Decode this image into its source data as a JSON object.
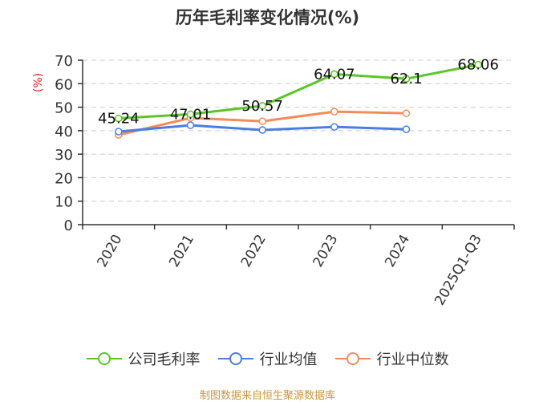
{
  "title": "历年毛利率变化情况(%)",
  "footer": "制图数据来自恒生聚源数据库",
  "colors": {
    "company": "#5bc52a",
    "industry_avg": "#4a7ee0",
    "industry_median": "#f48c5a",
    "ylabel": "#e02020",
    "footer": "#c8963c"
  },
  "legend": [
    {
      "label": "公司毛利率",
      "color": "#5bc52a"
    },
    {
      "label": "行业均值",
      "color": "#4a7ee0"
    },
    {
      "label": "行业中位数",
      "color": "#f48c5a"
    }
  ],
  "chart_data": {
    "type": "line",
    "title": "历年毛利率变化情况(%)",
    "xlabel": "",
    "ylabel": "(%)",
    "ylim": [
      0,
      70
    ],
    "yticks": [
      0,
      10,
      20,
      30,
      40,
      50,
      60,
      70
    ],
    "grid": "horizontal dashed",
    "legend_position": "bottom",
    "categories": [
      "2020",
      "2021",
      "2022",
      "2023",
      "2024",
      "2025Q1-Q3"
    ],
    "series": [
      {
        "name": "公司毛利率",
        "values": [
          45.24,
          47.01,
          50.57,
          64.07,
          62.1,
          68.06
        ],
        "labels_shown": true
      },
      {
        "name": "行业均值",
        "values": [
          39.6,
          42.3,
          40.3,
          41.6,
          40.6,
          null
        ]
      },
      {
        "name": "行业中位数",
        "values": [
          38.2,
          45.4,
          44.0,
          48.1,
          47.4,
          null
        ]
      }
    ]
  }
}
